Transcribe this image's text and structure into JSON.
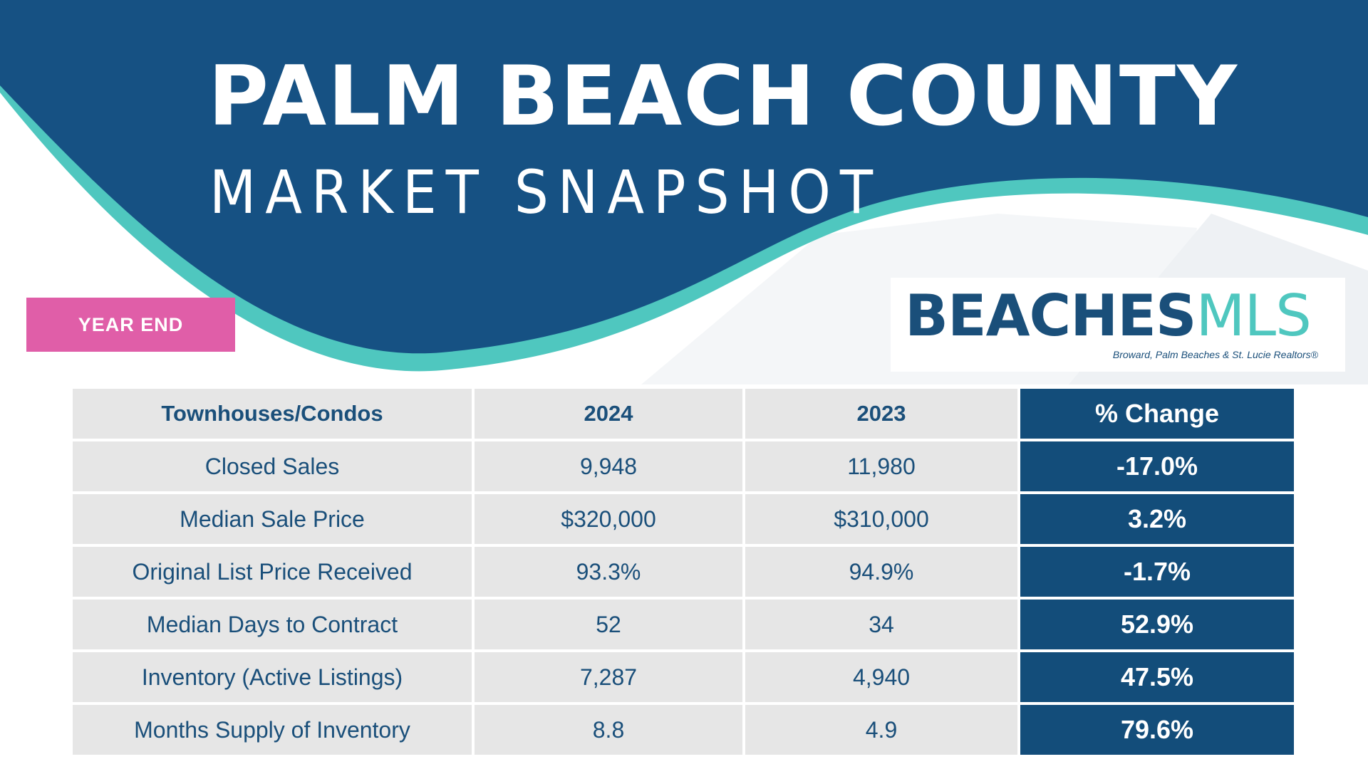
{
  "header": {
    "title": "PALM BEACH COUNTY",
    "subtitle": "MARKET SNAPSHOT",
    "badge": "YEAR END"
  },
  "logo": {
    "word_main": "BEACHES",
    "word_accent": "MLS",
    "tagline": "Broward, Palm Beaches & St. Lucie Realtors®"
  },
  "colors": {
    "navy": "#134d7a",
    "teal": "#4fc7bf",
    "pink": "#e05ea8",
    "cell_gray": "#e6e6e6"
  },
  "table": {
    "columns": [
      "Townhouses/Condos",
      "2024",
      "2023",
      "% Change"
    ],
    "rows": [
      [
        "Closed Sales",
        "9,948",
        "11,980",
        "-17.0%"
      ],
      [
        "Median Sale Price",
        "$320,000",
        "$310,000",
        "3.2%"
      ],
      [
        "Original List Price Received",
        "93.3%",
        "94.9%",
        "-1.7%"
      ],
      [
        "Median Days to Contract",
        "52",
        "34",
        "52.9%"
      ],
      [
        "Inventory (Active Listings)",
        "7,287",
        "4,940",
        "47.5%"
      ],
      [
        "Months Supply of Inventory",
        "8.8",
        "4.9",
        "79.6%"
      ]
    ]
  }
}
